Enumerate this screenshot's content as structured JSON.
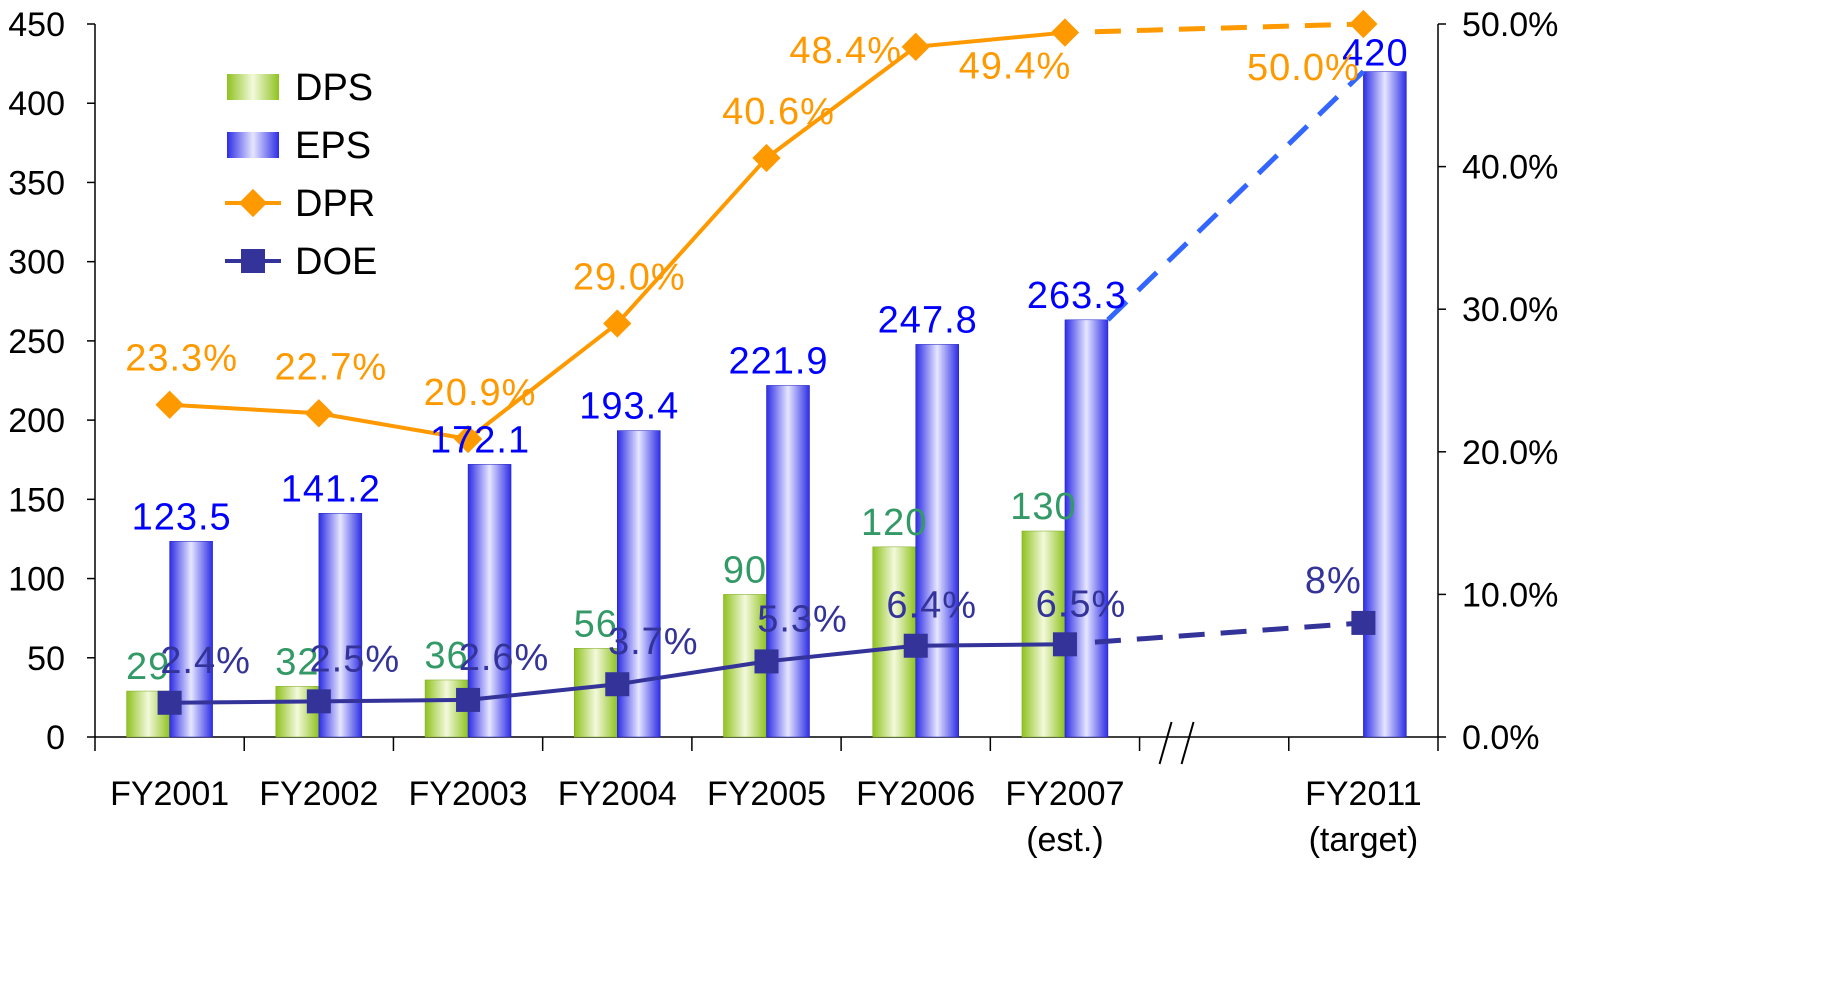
{
  "chart_data": {
    "type": "bar",
    "categories": [
      [
        "FY2001"
      ],
      [
        "FY2002"
      ],
      [
        "FY2003"
      ],
      [
        "FY2004"
      ],
      [
        "FY2005"
      ],
      [
        "FY2006"
      ],
      [
        "FY2007",
        "(est.)"
      ],
      [],
      [
        "FY2011",
        "(target)"
      ]
    ],
    "ylim": [
      0,
      450
    ],
    "y2lim": [
      0,
      50
    ],
    "yticks": [
      "0",
      "50",
      "100",
      "150",
      "200",
      "250",
      "300",
      "350",
      "400",
      "450"
    ],
    "y2ticks": [
      "0.0%",
      "10.0%",
      "20.0%",
      "30.0%",
      "40.0%",
      "50.0%"
    ],
    "axis_break_mark": "//",
    "legend_position": "top-left",
    "colors": {
      "dps_bar": "#99cc33",
      "eps_bar": "#3333ee",
      "dpr_line": "#ff9900",
      "doe_line": "#333399",
      "eps_dashed": "#3366ff",
      "dps_label": "#339966",
      "eps_label": "#0000ff",
      "dpr_label": "#ff9900",
      "doe_label": "#333399"
    },
    "series": [
      {
        "name": "DPS",
        "type": "bar",
        "axis": "left",
        "values": [
          29,
          32,
          36,
          56,
          90,
          120,
          130,
          null,
          null
        ],
        "labels": [
          "29",
          "32",
          "36",
          "56",
          "90",
          "120",
          "130",
          null,
          null
        ]
      },
      {
        "name": "EPS",
        "type": "bar",
        "axis": "left",
        "values": [
          123.5,
          141.2,
          172.1,
          193.4,
          221.9,
          247.8,
          263.3,
          null,
          420
        ],
        "labels": [
          "123.5",
          "141.2",
          "172.1",
          "193.4",
          "221.9",
          "247.8",
          "263.3",
          null,
          "420"
        ]
      },
      {
        "name": "DPR",
        "type": "line",
        "axis": "right",
        "values": [
          23.3,
          22.7,
          20.9,
          29.0,
          40.6,
          48.4,
          49.4,
          null,
          50.0
        ],
        "labels": [
          "23.3%",
          "22.7%",
          "20.9%",
          "29.0%",
          "40.6%",
          "48.4%",
          "49.4%",
          null,
          "50.0%"
        ]
      },
      {
        "name": "DOE",
        "type": "line",
        "axis": "right",
        "values": [
          2.4,
          2.5,
          2.6,
          3.7,
          5.3,
          6.4,
          6.5,
          null,
          8
        ],
        "labels": [
          "2.4%",
          "2.5%",
          "2.6%",
          "3.7%",
          "5.3%",
          "6.4%",
          "6.5%",
          null,
          "8%"
        ]
      }
    ]
  }
}
